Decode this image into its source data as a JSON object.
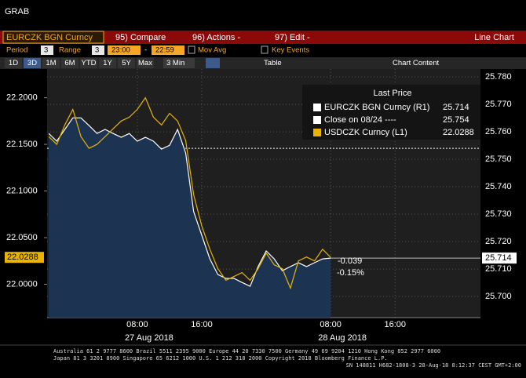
{
  "header": {
    "title": "GRAB"
  },
  "toolbar": {
    "security": "EURCZK BGN Curncy",
    "compare": "95) Compare",
    "actions": "96) Actions -",
    "edit": "97) Edit -",
    "chart_kind": "Line Chart"
  },
  "settings": {
    "period_label": "Period",
    "period": "3",
    "range_label": "Range",
    "range": "3",
    "start": "23:00",
    "dash": "-",
    "end": "22:59",
    "mov_avg": "Mov Avg",
    "key_events": "Key Events"
  },
  "range_buttons": [
    "1D",
    "3D",
    "1M",
    "6M",
    "YTD",
    "1Y",
    "5Y",
    "Max"
  ],
  "interval": "3 Min",
  "table": "Table",
  "chart_content": "Chart Content",
  "chart_data": {
    "type": "line",
    "legend_title": "Last Price",
    "x": [
      -3,
      -2,
      -1,
      0,
      1,
      2,
      3,
      4,
      5,
      6,
      7,
      8,
      9,
      10,
      11,
      12,
      13,
      14,
      15,
      16,
      17,
      18,
      19,
      20,
      21,
      22,
      23,
      24,
      25,
      26,
      27,
      28,
      29,
      30,
      31,
      32
    ],
    "xlim": [
      -3.2,
      50.6
    ],
    "xticks": [
      {
        "value": 8,
        "label": "08:00"
      },
      {
        "value": 16,
        "label": "16:00"
      },
      {
        "value": 32,
        "label": "08:00"
      },
      {
        "value": 40,
        "label": "16:00"
      }
    ],
    "dates": [
      {
        "value": 8,
        "label": "27 Aug 2018"
      },
      {
        "value": 32,
        "label": "28 Aug 2018"
      }
    ],
    "ylim": [
      21.9642,
      22.2308
    ],
    "yticks": [
      {
        "value": 22.0,
        "label": "22.0000"
      },
      {
        "value": 22.05,
        "label": "22.0500"
      },
      {
        "value": 22.1,
        "label": "22.1000"
      },
      {
        "value": 22.15,
        "label": "22.1500"
      },
      {
        "value": 22.2,
        "label": "22.2000"
      }
    ],
    "y2lim": [
      25.6923,
      25.7829
    ],
    "y2ticks": [
      {
        "value": 25.7,
        "label": "25.700"
      },
      {
        "value": 25.71,
        "label": "25.710"
      },
      {
        "value": 25.72,
        "label": "25.720"
      },
      {
        "value": 25.73,
        "label": "25.730"
      },
      {
        "value": 25.74,
        "label": "25.740"
      },
      {
        "value": 25.75,
        "label": "25.750"
      },
      {
        "value": 25.76,
        "label": "25.760"
      },
      {
        "value": 25.77,
        "label": "25.770"
      },
      {
        "value": 25.78,
        "label": "25.780"
      }
    ],
    "grid": true,
    "series": [
      {
        "name": "EURCZK BGN Curncy (R1)",
        "color": "#ffffff",
        "axis": "y2",
        "area_color": "#1c3352",
        "values": [
          25.7594,
          25.7566,
          25.7609,
          25.7651,
          25.7651,
          25.7623,
          25.7594,
          25.7609,
          25.7594,
          25.758,
          25.7594,
          25.7566,
          25.758,
          25.7566,
          25.7537,
          25.7551,
          25.7609,
          25.7523,
          25.7309,
          25.7223,
          25.7137,
          25.708,
          25.7066,
          25.7066,
          25.7051,
          25.7037,
          25.7109,
          25.7166,
          25.7137,
          25.7094,
          25.7109,
          25.7123,
          25.7109,
          25.7123,
          25.7137,
          25.714
        ]
      },
      {
        "name": "USDCZK Curncy (L1)",
        "color": "#e8b400",
        "axis": "y",
        "values": [
          22.1583,
          22.15,
          22.1708,
          22.1875,
          22.1583,
          22.1458,
          22.15,
          22.1583,
          22.1667,
          22.175,
          22.1792,
          22.1875,
          22.2,
          22.1792,
          22.1708,
          22.1833,
          22.175,
          22.1542,
          22.0958,
          22.0625,
          22.0375,
          22.0167,
          22.0042,
          22.0083,
          22.0125,
          22.0042,
          22.0167,
          22.0333,
          22.0208,
          22.0167,
          21.9958,
          22.025,
          22.0292,
          22.025,
          22.0375,
          22.0288
        ]
      }
    ],
    "reference_lines": [
      {
        "name": "Close on 08/24 ----",
        "value": 25.754,
        "axis": "y2",
        "color": "#ffffff"
      }
    ],
    "annotations": [
      "-0.039",
      "-0.15%"
    ]
  },
  "footer": [
    "Australia 61 2 9777 8600 Brazil 5511 2395 9000 Europe 44 20 7330 7500 Germany 49 69 9204 1210 Hong Kong 852 2977 6000",
    "Japan 81 3 3201 8900        Singapore 65 6212 1000        U.S. 1 212 318 2000        Copyright 2018 Bloomberg Finance L.P.",
    "SN 148811 H682-1808-3 28-Aug-18  8:12:37 CEST GMT+2:00"
  ]
}
